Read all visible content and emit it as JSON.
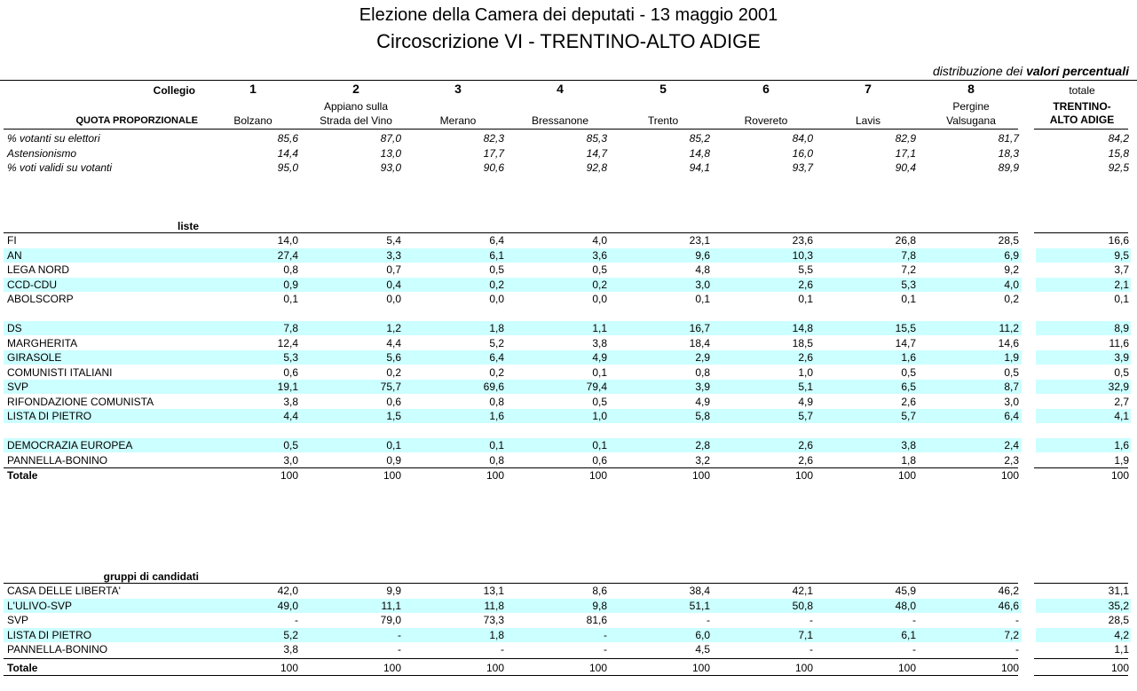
{
  "title": "Elezione della Camera dei deputati  -  13 maggio 2001",
  "subtitle": "Circoscrizione VI - TRENTINO-ALTO ADIGE",
  "distribution_prefix": "distribuzione dei",
  "distribution_bold": "valori percentuali",
  "header": {
    "collegio_label": "Collegio",
    "quota_label": "QUOTA PROPORZIONALE",
    "colleges": [
      {
        "num": "1",
        "name1": "",
        "name2": "Bolzano"
      },
      {
        "num": "2",
        "name1": "Appiano sulla",
        "name2": "Strada del Vino"
      },
      {
        "num": "3",
        "name1": "",
        "name2": "Merano"
      },
      {
        "num": "4",
        "name1": "",
        "name2": "Bressanone"
      },
      {
        "num": "5",
        "name1": "",
        "name2": "Trento"
      },
      {
        "num": "6",
        "name1": "",
        "name2": "Rovereto"
      },
      {
        "num": "7",
        "name1": "",
        "name2": "Lavis"
      },
      {
        "num": "8",
        "name1": "Pergine",
        "name2": "Valsugana"
      }
    ],
    "total_top": "totale",
    "total_name1": "TRENTINO-",
    "total_name2": "ALTO ADIGE"
  },
  "stats": [
    {
      "label": "% votanti su elettori",
      "values": [
        "85,6",
        "87,0",
        "82,3",
        "85,3",
        "85,2",
        "84,0",
        "82,9",
        "81,7"
      ],
      "total": "84,2"
    },
    {
      "label": "Astensionismo",
      "values": [
        "14,4",
        "13,0",
        "17,7",
        "14,7",
        "14,8",
        "16,0",
        "17,1",
        "18,3"
      ],
      "total": "15,8"
    },
    {
      "label": "% voti validi su votanti",
      "values": [
        "95,0",
        "93,0",
        "90,6",
        "92,8",
        "94,1",
        "93,7",
        "90,4",
        "89,9"
      ],
      "total": "92,5"
    }
  ],
  "liste_label": "liste",
  "liste": [
    {
      "label": "FI",
      "values": [
        "14,0",
        "5,4",
        "6,4",
        "4,0",
        "23,1",
        "23,6",
        "26,8",
        "28,5"
      ],
      "total": "16,6",
      "band": false
    },
    {
      "label": "AN",
      "values": [
        "27,4",
        "3,3",
        "6,1",
        "3,6",
        "9,6",
        "10,3",
        "7,8",
        "6,9"
      ],
      "total": "9,5",
      "band": true
    },
    {
      "label": "LEGA NORD",
      "values": [
        "0,8",
        "0,7",
        "0,5",
        "0,5",
        "4,8",
        "5,5",
        "7,2",
        "9,2"
      ],
      "total": "3,7",
      "band": false
    },
    {
      "label": "CCD-CDU",
      "values": [
        "0,9",
        "0,4",
        "0,2",
        "0,2",
        "3,0",
        "2,6",
        "5,3",
        "4,0"
      ],
      "total": "2,1",
      "band": true
    },
    {
      "label": "ABOLSCORP",
      "values": [
        "0,1",
        "0,0",
        "0,0",
        "0,0",
        "0,1",
        "0,1",
        "0,1",
        "0,2"
      ],
      "total": "0,1",
      "band": false
    },
    {
      "label": "",
      "values": [
        "",
        "",
        "",
        "",
        "",
        "",
        "",
        ""
      ],
      "total": "",
      "band": false
    },
    {
      "label": "DS",
      "values": [
        "7,8",
        "1,2",
        "1,8",
        "1,1",
        "16,7",
        "14,8",
        "15,5",
        "11,2"
      ],
      "total": "8,9",
      "band": true
    },
    {
      "label": "MARGHERITA",
      "values": [
        "12,4",
        "4,4",
        "5,2",
        "3,8",
        "18,4",
        "18,5",
        "14,7",
        "14,6"
      ],
      "total": "11,6",
      "band": false
    },
    {
      "label": "GIRASOLE",
      "values": [
        "5,3",
        "5,6",
        "6,4",
        "4,9",
        "2,9",
        "2,6",
        "1,6",
        "1,9"
      ],
      "total": "3,9",
      "band": true
    },
    {
      "label": "COMUNISTI ITALIANI",
      "values": [
        "0,6",
        "0,2",
        "0,2",
        "0,1",
        "0,8",
        "1,0",
        "0,5",
        "0,5"
      ],
      "total": "0,5",
      "band": false
    },
    {
      "label": "SVP",
      "values": [
        "19,1",
        "75,7",
        "69,6",
        "79,4",
        "3,9",
        "5,1",
        "6,5",
        "8,7"
      ],
      "total": "32,9",
      "band": true
    },
    {
      "label": "RIFONDAZIONE COMUNISTA",
      "values": [
        "3,8",
        "0,6",
        "0,8",
        "0,5",
        "4,9",
        "4,9",
        "2,6",
        "3,0"
      ],
      "total": "2,7",
      "band": false
    },
    {
      "label": "LISTA DI PIETRO",
      "values": [
        "4,4",
        "1,5",
        "1,6",
        "1,0",
        "5,8",
        "5,7",
        "5,7",
        "6,4"
      ],
      "total": "4,1",
      "band": true
    },
    {
      "label": "",
      "values": [
        "",
        "",
        "",
        "",
        "",
        "",
        "",
        ""
      ],
      "total": "",
      "band": false
    },
    {
      "label": "DEMOCRAZIA EUROPEA",
      "values": [
        "0,5",
        "0,1",
        "0,1",
        "0,1",
        "2,8",
        "2,6",
        "3,8",
        "2,4"
      ],
      "total": "1,6",
      "band": true
    },
    {
      "label": "PANNELLA-BONINO",
      "values": [
        "3,0",
        "0,9",
        "0,8",
        "0,6",
        "3,2",
        "2,6",
        "1,8",
        "2,3"
      ],
      "total": "1,9",
      "band": false
    }
  ],
  "liste_total": {
    "label": "Totale",
    "values": [
      "100",
      "100",
      "100",
      "100",
      "100",
      "100",
      "100",
      "100"
    ],
    "total": "100"
  },
  "gruppi_label": "gruppi di candidati",
  "gruppi": [
    {
      "label": "CASA DELLE LIBERTA'",
      "values": [
        "42,0",
        "9,9",
        "13,1",
        "8,6",
        "38,4",
        "42,1",
        "45,9",
        "46,2"
      ],
      "total": "31,1",
      "band": false
    },
    {
      "label": "L'ULIVO-SVP",
      "values": [
        "49,0",
        "11,1",
        "11,8",
        "9,8",
        "51,1",
        "50,8",
        "48,0",
        "46,6"
      ],
      "total": "35,2",
      "band": true
    },
    {
      "label": "SVP",
      "values": [
        "-",
        "79,0",
        "73,3",
        "81,6",
        "-",
        "-",
        "-",
        "-"
      ],
      "total": "28,5",
      "band": false
    },
    {
      "label": "LISTA DI PIETRO",
      "values": [
        "5,2",
        "-",
        "1,8",
        "-",
        "6,0",
        "7,1",
        "6,1",
        "7,2"
      ],
      "total": "4,2",
      "band": true
    },
    {
      "label": "PANNELLA-BONINO",
      "values": [
        "3,8",
        "-",
        "-",
        "-",
        "4,5",
        "-",
        "-",
        "-"
      ],
      "total": "1,1",
      "band": false
    }
  ],
  "gruppi_total": {
    "label": "Totale",
    "values": [
      "100",
      "100",
      "100",
      "100",
      "100",
      "100",
      "100",
      "100"
    ],
    "total": "100"
  }
}
